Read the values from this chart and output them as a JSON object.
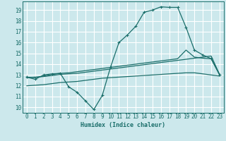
{
  "background_color": "#cce8ec",
  "grid_color": "#ffffff",
  "line_color": "#1a6e6a",
  "xlabel": "Humidex (Indice chaleur)",
  "xlim": [
    -0.5,
    23.5
  ],
  "ylim": [
    9.5,
    19.8
  ],
  "yticks": [
    10,
    11,
    12,
    13,
    14,
    15,
    16,
    17,
    18,
    19
  ],
  "xticks": [
    0,
    1,
    2,
    3,
    4,
    5,
    6,
    7,
    8,
    9,
    10,
    11,
    12,
    13,
    14,
    15,
    16,
    17,
    18,
    19,
    20,
    21,
    22,
    23
  ],
  "curve1_x": [
    0,
    1,
    2,
    3,
    4,
    5,
    6,
    7,
    8,
    9,
    10,
    11,
    12,
    13,
    14,
    15,
    16,
    17,
    18,
    19,
    20,
    21,
    22,
    23
  ],
  "curve1_y": [
    12.8,
    12.6,
    13.0,
    13.1,
    13.15,
    11.9,
    11.4,
    10.6,
    9.8,
    11.1,
    13.75,
    16.0,
    16.7,
    17.5,
    18.8,
    19.0,
    19.3,
    19.25,
    19.25,
    17.4,
    15.3,
    14.85,
    14.5,
    13.0
  ],
  "curve2_x": [
    0,
    1,
    2,
    3,
    4,
    5,
    6,
    7,
    8,
    9,
    10,
    11,
    12,
    13,
    14,
    15,
    16,
    17,
    18,
    19,
    20,
    21,
    22,
    23
  ],
  "curve2_y": [
    12.8,
    12.75,
    12.9,
    13.05,
    13.15,
    13.2,
    13.3,
    13.4,
    13.5,
    13.6,
    13.7,
    13.8,
    13.9,
    14.0,
    14.1,
    14.2,
    14.3,
    14.4,
    14.5,
    15.3,
    14.65,
    14.55,
    14.5,
    13.05
  ],
  "curve3_x": [
    0,
    1,
    2,
    3,
    4,
    5,
    6,
    7,
    8,
    9,
    10,
    11,
    12,
    13,
    14,
    15,
    16,
    17,
    18,
    19,
    20,
    21,
    22,
    23
  ],
  "curve3_y": [
    12.75,
    12.8,
    12.85,
    12.95,
    13.05,
    13.1,
    13.15,
    13.25,
    13.35,
    13.45,
    13.55,
    13.65,
    13.75,
    13.85,
    13.95,
    14.05,
    14.15,
    14.25,
    14.35,
    14.45,
    14.55,
    14.65,
    14.75,
    13.05
  ],
  "curve4_x": [
    0,
    1,
    2,
    3,
    4,
    5,
    6,
    7,
    8,
    9,
    10,
    11,
    12,
    13,
    14,
    15,
    16,
    17,
    18,
    19,
    20,
    21,
    22,
    23
  ],
  "curve4_y": [
    12.0,
    12.05,
    12.1,
    12.2,
    12.3,
    12.35,
    12.4,
    12.5,
    12.6,
    12.7,
    12.75,
    12.8,
    12.85,
    12.9,
    12.95,
    13.0,
    13.05,
    13.1,
    13.15,
    13.2,
    13.2,
    13.1,
    13.0,
    12.9
  ]
}
